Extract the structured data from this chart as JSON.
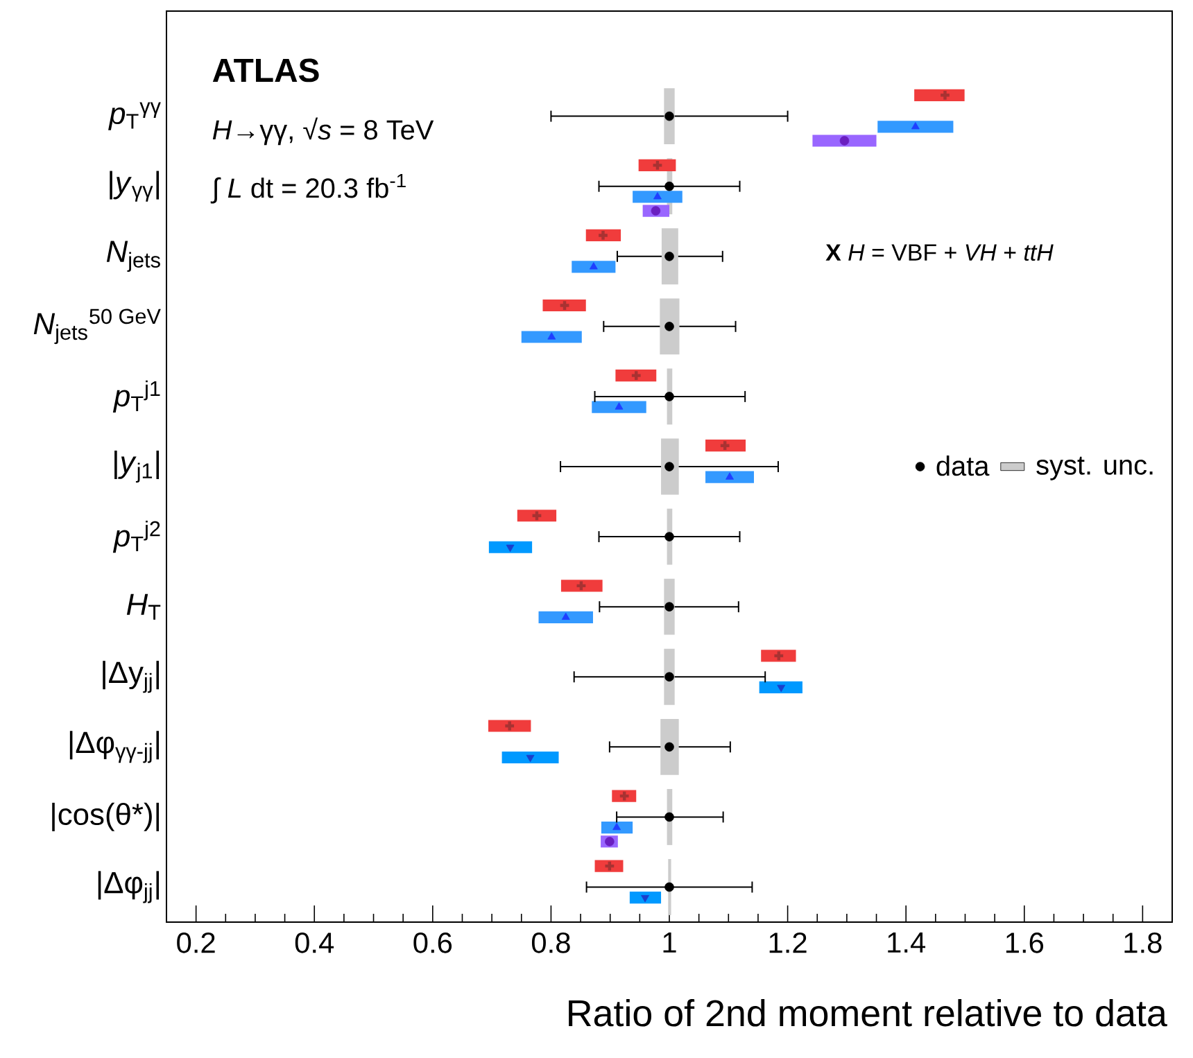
{
  "chart_data": {
    "type": "scatter",
    "orientation": "horizontal",
    "xlabel": "Ratio of 2nd moment relative to data",
    "categories": [
      "*p*$_{T}$$^{γγ}$",
      "|*y*$_{γγ}$|",
      "*N*$_{jets}$",
      "*N*$_{jets}$$^{50 GeV}$",
      "*p*$_{T}$$^{j1}$",
      "|*y*$_{j1}$|",
      "*p*$_{T}$$^{j2}$",
      "*H*$_{T}$",
      "|Δy$_{jj}$|",
      "|Δφ$_{γγ-jj}$|",
      "|cos(θ*)|",
      "|Δφ$_{jj}$|"
    ],
    "xlim": [
      0.15,
      1.85
    ],
    "xticks": [
      0.2,
      0.4,
      0.6,
      0.8,
      1,
      1.2,
      1.4,
      1.6,
      1.8
    ],
    "legend": "right",
    "annotations": [
      "**ATLAS**",
      "*H*→γγ, √*s* = 8 TeV",
      "∫ *L* dt = 20.3 fb$^{-1}$",
      "**X** *H* = VBF + *VH* + *ttH*"
    ],
    "series": [
      {
        "name": "data",
        "color": "#000000",
        "marker": "circle",
        "values": [
          1,
          1,
          1,
          1,
          1,
          1,
          1,
          1,
          1,
          1,
          1,
          1
        ],
        "errors": [
          [
            0.8,
            1.2
          ],
          [
            0.881,
            1.119
          ],
          [
            0.912,
            1.09
          ],
          [
            0.889,
            1.112
          ],
          [
            0.874,
            1.128
          ],
          [
            0.816,
            1.184
          ],
          [
            0.881,
            1.119
          ],
          [
            0.882,
            1.117
          ],
          [
            0.839,
            1.162
          ],
          [
            0.899,
            1.103
          ],
          [
            0.911,
            1.091
          ],
          [
            0.86,
            1.14
          ]
        ]
      },
      {
        "name": "syst. unc.",
        "type": "bar",
        "color": "#cccccc",
        "base": [
          0.991,
          0.996,
          0.987,
          0.984,
          0.996,
          0.986,
          0.996,
          0.991,
          0.991,
          0.985,
          0.996,
          0.998
        ],
        "values": [
          0.018,
          0.009,
          0.028,
          0.033,
          0.009,
          0.03,
          0.009,
          0.018,
          0.018,
          0.031,
          0.009,
          0.005
        ]
      },
      {
        "type": "bar",
        "color": "#f03c3c",
        "base": [
          1.414,
          0.948,
          0.859,
          0.786,
          0.909,
          1.061,
          0.743,
          0.817,
          1.155,
          0.694,
          0.903,
          0.874
        ],
        "values": [
          0.085,
          0.063,
          0.059,
          0.073,
          0.069,
          0.068,
          0.066,
          0.07,
          0.059,
          0.072,
          0.041,
          0.048
        ]
      },
      {
        "color": "#a83232",
        "marker": "cross",
        "values": [
          1.466,
          0.98,
          0.888,
          0.823,
          0.944,
          1.094,
          0.776,
          0.851,
          1.185,
          0.73,
          0.924,
          0.899
        ]
      },
      {
        "type": "bar",
        "color": "#3399ff",
        "base": [
          1.352,
          0.938,
          0.835,
          0.75,
          0.869,
          1.061,
          null,
          0.779,
          null,
          null,
          0.885,
          null
        ],
        "values": [
          0.128,
          0.084,
          0.074,
          0.102,
          0.092,
          0.082,
          null,
          0.092,
          null,
          null,
          0.053,
          null
        ]
      },
      {
        "color": "#1f3fff",
        "marker": "triangle",
        "values": [
          1.416,
          0.98,
          0.872,
          0.801,
          0.915,
          1.102,
          null,
          0.825,
          null,
          null,
          0.911,
          null
        ]
      },
      {
        "type": "bar",
        "color": "#0099ff",
        "base": [
          null,
          null,
          null,
          null,
          null,
          null,
          0.695,
          null,
          1.152,
          0.717,
          null,
          0.933
        ],
        "values": [
          null,
          null,
          null,
          null,
          null,
          null,
          0.073,
          null,
          0.073,
          0.096,
          null,
          0.053
        ]
      },
      {
        "color": "#1a3fcc",
        "marker": "triangle-down",
        "values": [
          null,
          null,
          null,
          null,
          null,
          null,
          0.731,
          null,
          1.189,
          0.765,
          null,
          0.959
        ]
      },
      {
        "type": "bar",
        "color": "#9966ff",
        "base": [
          1.242,
          0.955,
          null,
          null,
          null,
          null,
          null,
          null,
          null,
          null,
          0.884,
          null
        ],
        "values": [
          0.108,
          0.045,
          null,
          null,
          null,
          null,
          null,
          null,
          null,
          null,
          0.029,
          null
        ]
      },
      {
        "color": "#6a1fc0",
        "marker": "circle",
        "values": [
          1.296,
          0.977,
          null,
          null,
          null,
          null,
          null,
          null,
          null,
          null,
          0.899,
          null
        ]
      }
    ]
  }
}
